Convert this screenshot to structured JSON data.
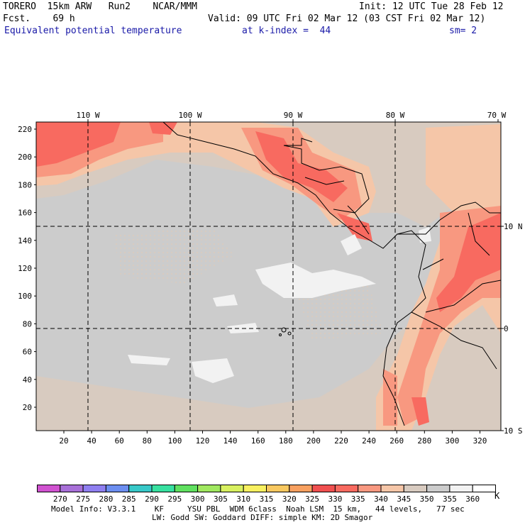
{
  "header": {
    "model": "TORERO  15km ARW   Run2    NCAR/MMM",
    "fcst": "Fcst.    69 h",
    "init": "Init: 12 UTC Tue 28 Feb 12",
    "valid": "Valid: 09 UTC Fri 02 Mar 12 (03 CST Fri 02 Mar 12)",
    "field": "Equivalent potential temperature",
    "level": "at k-index =  44",
    "smooth": "sm= 2"
  },
  "map": {
    "top_lon_labels": [
      "110 W",
      "100 W",
      "90 W",
      "80 W",
      "70 W"
    ],
    "right_lat_labels": [
      "10 N",
      "0",
      "10 S"
    ],
    "y_grid_labels": [
      "220",
      "200",
      "180",
      "160",
      "140",
      "120",
      "100",
      "80",
      "60",
      "40",
      "20"
    ],
    "x_grid_labels": [
      "20",
      "40",
      "60",
      "80",
      "100",
      "120",
      "140",
      "160",
      "180",
      "200",
      "220",
      "240",
      "260",
      "280",
      "300",
      "320"
    ]
  },
  "colorbar": {
    "unit": "K",
    "labels": [
      "270",
      "275",
      "280",
      "285",
      "290",
      "295",
      "300",
      "305",
      "310",
      "315",
      "320",
      "325",
      "330",
      "335",
      "340",
      "345",
      "350",
      "355",
      "360"
    ],
    "colors": [
      "#d052d0",
      "#a870d8",
      "#8f7ff0",
      "#6c8ef0",
      "#38c8c8",
      "#38e0a0",
      "#60e060",
      "#a0e860",
      "#d8f060",
      "#f8f060",
      "#f8c860",
      "#f8a060",
      "#f05050",
      "#f86a60",
      "#f89880",
      "#f5c6a8",
      "#d8cbc0",
      "#cccccc",
      "#f2f2f2",
      "#ffffff"
    ]
  },
  "footer": {
    "line1": "Model Info: V3.3.1    KF     YSU PBL  WDM 6class  Noah LSM  15 km,   44 levels,   77 sec",
    "line2": "LW: Godd SW: Goddard DIFF: simple KM: 2D Smagor"
  }
}
